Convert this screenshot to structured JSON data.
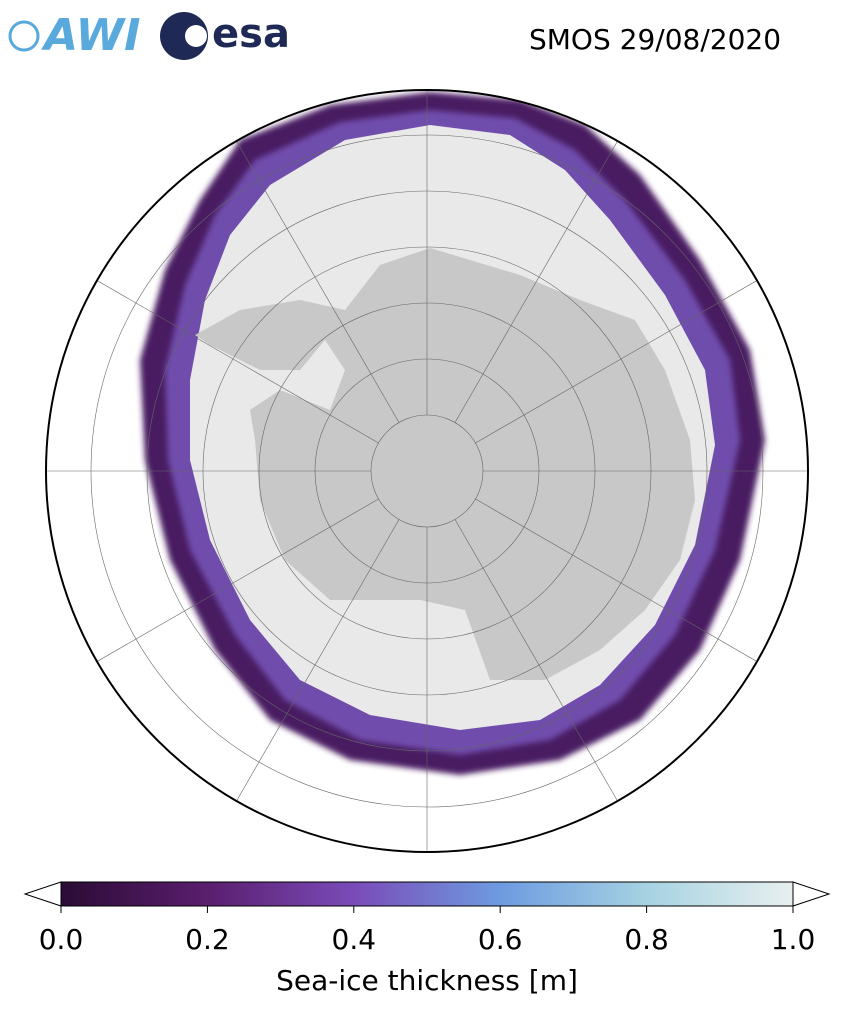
{
  "logos": [
    "AWI",
    "esa"
  ],
  "title": "SMOS 29/08/2020",
  "colorbar": {
    "label": "Sea-ice thickness [m]",
    "lim": [
      0,
      1
    ],
    "ticks": [
      {
        "value": 0,
        "label": "0.0"
      },
      {
        "value": 0.2,
        "label": "0.2"
      },
      {
        "value": 0.4,
        "label": "0.4"
      },
      {
        "value": 0.6,
        "label": "0.6"
      },
      {
        "value": 0.8,
        "label": "0.8"
      },
      {
        "value": 1,
        "label": "1.0"
      }
    ],
    "colors": [
      "#2b0b35",
      "#5a1e6e",
      "#7a4bb8",
      "#6d9be0",
      "#a6d2e2",
      "#e8f0ef"
    ]
  }
}
